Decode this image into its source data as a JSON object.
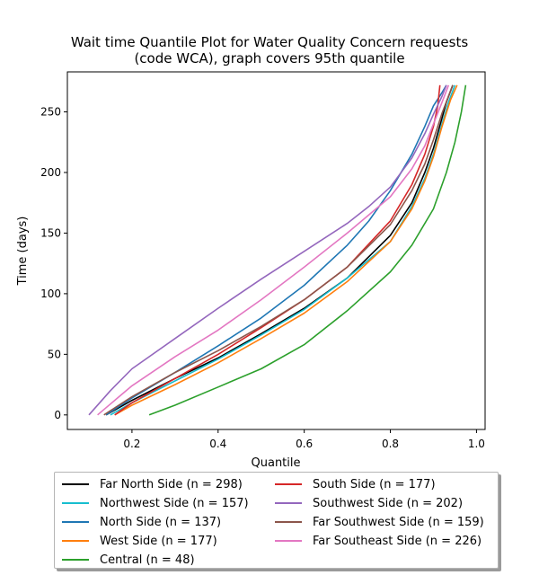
{
  "chart_data": {
    "type": "line",
    "title": "Wait time Quantile Plot for Water Quality Concern  requests",
    "subtitle": "(code WCA), graph covers 95th quantile",
    "xlabel": "Quantile",
    "ylabel": "Time (days)",
    "xlim": [
      0.05,
      1.02
    ],
    "ylim": [
      -12,
      283
    ],
    "xticks": [
      0.2,
      0.4,
      0.6,
      0.8,
      1.0
    ],
    "xtick_labels": [
      "0.2",
      "0.4",
      "0.6",
      "0.8",
      "1.0"
    ],
    "yticks": [
      0,
      50,
      100,
      150,
      200,
      250
    ],
    "ytick_labels": [
      "0",
      "50",
      "100",
      "150",
      "200",
      "250"
    ],
    "grid": false,
    "legend_placement": "below",
    "series": [
      {
        "name": "Far North Side (n = 298)",
        "color": "#000000",
        "x": [
          0.14,
          0.2,
          0.3,
          0.4,
          0.5,
          0.6,
          0.7,
          0.8,
          0.85,
          0.88,
          0.9,
          0.92,
          0.93,
          0.945
        ],
        "y": [
          0,
          12,
          30,
          47,
          67,
          88,
          113,
          148,
          175,
          200,
          220,
          245,
          258,
          272
        ]
      },
      {
        "name": "Northwest Side (n = 157)",
        "color": "#17becf",
        "x": [
          0.15,
          0.2,
          0.3,
          0.4,
          0.5,
          0.6,
          0.7,
          0.8,
          0.85,
          0.88,
          0.9,
          0.92,
          0.935,
          0.95
        ],
        "y": [
          0,
          10,
          28,
          46,
          66,
          87,
          113,
          143,
          172,
          195,
          215,
          240,
          258,
          272
        ]
      },
      {
        "name": "North Side (n = 137)",
        "color": "#1f77b4",
        "x": [
          0.14,
          0.2,
          0.3,
          0.4,
          0.5,
          0.6,
          0.7,
          0.75,
          0.8,
          0.85,
          0.88,
          0.9,
          0.92,
          0.93
        ],
        "y": [
          0,
          14,
          35,
          57,
          80,
          107,
          140,
          160,
          185,
          215,
          238,
          255,
          266,
          272
        ]
      },
      {
        "name": "West Side (n = 177)",
        "color": "#ff7f0e",
        "x": [
          0.16,
          0.2,
          0.3,
          0.4,
          0.5,
          0.6,
          0.7,
          0.8,
          0.85,
          0.88,
          0.9,
          0.92,
          0.94,
          0.955
        ],
        "y": [
          0,
          8,
          25,
          43,
          63,
          84,
          110,
          143,
          170,
          193,
          213,
          238,
          260,
          272
        ]
      },
      {
        "name": "Central (n = 48)",
        "color": "#2ca02c",
        "x": [
          0.24,
          0.3,
          0.4,
          0.5,
          0.6,
          0.7,
          0.8,
          0.85,
          0.9,
          0.93,
          0.95,
          0.965,
          0.975
        ],
        "y": [
          0,
          8,
          23,
          38,
          58,
          86,
          118,
          140,
          170,
          200,
          225,
          250,
          272
        ]
      },
      {
        "name": "South Side (n = 177)",
        "color": "#d62728",
        "x": [
          0.16,
          0.2,
          0.3,
          0.4,
          0.5,
          0.6,
          0.7,
          0.8,
          0.85,
          0.88,
          0.9,
          0.91,
          0.915
        ],
        "y": [
          0,
          10,
          30,
          50,
          72,
          95,
          122,
          160,
          190,
          215,
          238,
          255,
          272
        ]
      },
      {
        "name": "Southwest Side (n = 202)",
        "color": "#9467bd",
        "x": [
          0.1,
          0.15,
          0.2,
          0.3,
          0.4,
          0.5,
          0.6,
          0.7,
          0.75,
          0.8,
          0.85,
          0.88,
          0.9,
          0.92,
          0.93
        ],
        "y": [
          0,
          20,
          38,
          63,
          88,
          112,
          135,
          158,
          172,
          188,
          212,
          232,
          248,
          263,
          272
        ]
      },
      {
        "name": "Far Southwest Side (n = 159)",
        "color": "#8c564b",
        "x": [
          0.135,
          0.2,
          0.3,
          0.4,
          0.5,
          0.6,
          0.7,
          0.8,
          0.85,
          0.88,
          0.9,
          0.92,
          0.935,
          0.945
        ],
        "y": [
          0,
          15,
          35,
          53,
          73,
          95,
          122,
          157,
          185,
          207,
          227,
          249,
          263,
          272
        ]
      },
      {
        "name": "Far Southeast Side (n = 226)",
        "color": "#e377c2",
        "x": [
          0.12,
          0.2,
          0.3,
          0.4,
          0.5,
          0.6,
          0.7,
          0.8,
          0.85,
          0.88,
          0.9,
          0.92,
          0.935
        ],
        "y": [
          0,
          24,
          48,
          70,
          95,
          122,
          150,
          180,
          203,
          222,
          240,
          258,
          272
        ]
      }
    ]
  }
}
